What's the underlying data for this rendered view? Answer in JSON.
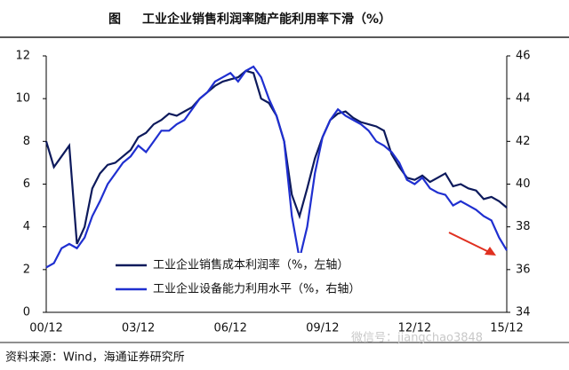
{
  "chart_data": {
    "type": "line",
    "title_prefix": "图",
    "title": "工业企业销售利润率随产能利用率下滑（%）",
    "source": "资料来源：Wind，海通证券研究所",
    "watermark": "微信号：jiangchao3848",
    "categories": [
      "00/12",
      null,
      null,
      null,
      null,
      null,
      null,
      null,
      null,
      null,
      null,
      null,
      "03/12",
      null,
      null,
      null,
      null,
      null,
      null,
      null,
      null,
      null,
      null,
      null,
      "06/12",
      null,
      null,
      null,
      null,
      null,
      null,
      null,
      null,
      null,
      null,
      null,
      "09/12",
      null,
      null,
      null,
      null,
      null,
      null,
      null,
      null,
      null,
      null,
      null,
      "12/12",
      null,
      null,
      null,
      null,
      null,
      null,
      null,
      null,
      null,
      null,
      null,
      "15/12"
    ],
    "ylim": [
      0,
      12
    ],
    "yticks": [
      0,
      2,
      4,
      6,
      8,
      10,
      12
    ],
    "y2lim": [
      34,
      46
    ],
    "y2ticks": [
      34,
      36,
      38,
      40,
      42,
      44,
      46
    ],
    "series": [
      {
        "name": "工业企业销售成本利润率（%，左轴）",
        "color": "#0d1a5c",
        "values": [
          8.0,
          6.8,
          7.3,
          7.8,
          3.2,
          4.0,
          5.8,
          6.5,
          6.9,
          7.0,
          7.3,
          7.6,
          8.2,
          8.4,
          8.8,
          9.0,
          9.3,
          9.2,
          9.4,
          9.6,
          10.0,
          10.3,
          10.6,
          10.8,
          10.9,
          11.0,
          11.3,
          11.2,
          10.0,
          9.8,
          9.2,
          8.0,
          5.5,
          4.5,
          5.8,
          7.2,
          8.2,
          9.0,
          9.3,
          9.4,
          9.1,
          8.9,
          8.8,
          8.7,
          8.5,
          7.4,
          6.8,
          6.3,
          6.2,
          6.4,
          6.1,
          6.3,
          6.5,
          5.9,
          6.0,
          5.8,
          5.7,
          5.3,
          5.4,
          5.2,
          4.9
        ]
      },
      {
        "name": "工业企业设备能力利用水平（%，右轴）",
        "color": "#1f2fd0",
        "axis": "y2",
        "values": [
          36.1,
          36.3,
          37.0,
          37.2,
          37.0,
          37.5,
          38.5,
          39.2,
          40.0,
          40.5,
          41.0,
          41.3,
          41.8,
          41.5,
          42.0,
          42.5,
          42.5,
          42.8,
          43.0,
          43.5,
          44.0,
          44.3,
          44.8,
          45.0,
          45.2,
          44.8,
          45.3,
          45.5,
          45.0,
          44.0,
          43.2,
          42.0,
          38.5,
          36.5,
          38.0,
          40.5,
          42.2,
          43.0,
          43.5,
          43.2,
          43.0,
          42.8,
          42.5,
          42.0,
          41.8,
          41.5,
          41.0,
          40.2,
          40.0,
          40.3,
          39.8,
          39.6,
          39.5,
          39.0,
          39.2,
          39.0,
          38.8,
          38.5,
          38.3,
          37.5,
          36.9
        ]
      }
    ]
  }
}
